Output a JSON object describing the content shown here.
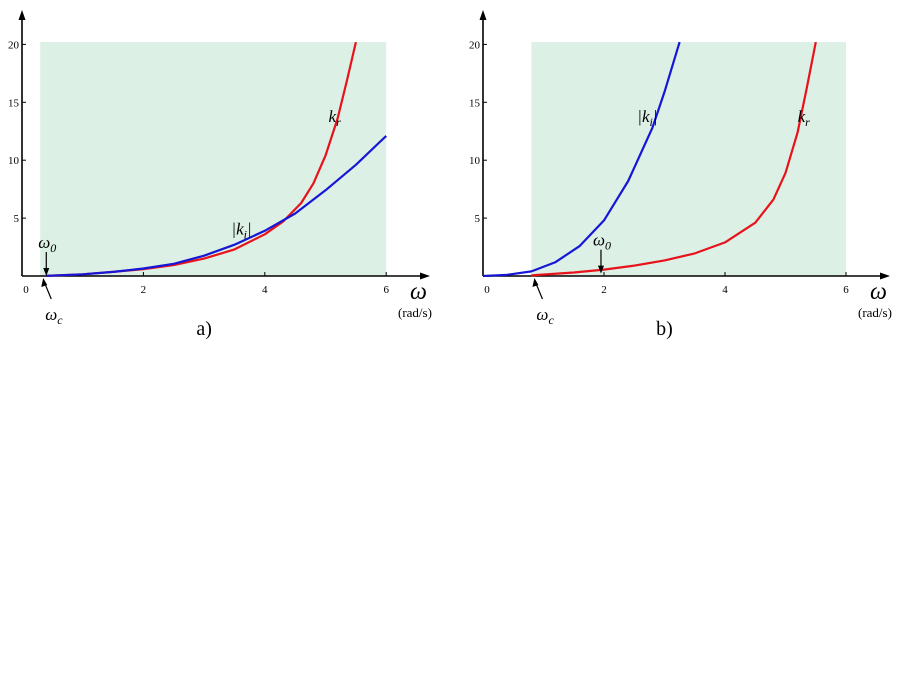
{
  "chart_data": [
    {
      "type": "line",
      "panel_label": "a)",
      "xlabel": "ω",
      "xunit": "(rad/s)",
      "ylabel": "",
      "xlim": [
        0,
        6.5
      ],
      "ylim": [
        0,
        22
      ],
      "xticks": [
        0,
        2,
        4,
        6
      ],
      "yticks": [
        5,
        10,
        15,
        20
      ],
      "shaded_region": {
        "x": [
          0.3,
          6.0
        ],
        "y": [
          0,
          20.2
        ],
        "color": "#dcf0e6"
      },
      "grid": false,
      "series": [
        {
          "name": "kr",
          "color": "#e8121a",
          "x": [
            0.4,
            1.0,
            1.5,
            2.0,
            2.5,
            3.0,
            3.5,
            4.0,
            4.3,
            4.6,
            4.8,
            5.0,
            5.2,
            5.35,
            5.5
          ],
          "y": [
            0.02,
            0.15,
            0.35,
            0.6,
            0.95,
            1.5,
            2.3,
            3.6,
            4.7,
            6.3,
            8.0,
            10.4,
            13.6,
            16.8,
            20.2
          ]
        },
        {
          "name": "|ki|",
          "color": "#1616d6",
          "x": [
            0.4,
            1.0,
            1.5,
            2.0,
            2.5,
            3.0,
            3.5,
            4.0,
            4.5,
            5.0,
            5.5,
            6.0
          ],
          "y": [
            0.02,
            0.15,
            0.35,
            0.65,
            1.05,
            1.75,
            2.7,
            3.9,
            5.4,
            7.4,
            9.6,
            12.1
          ]
        }
      ],
      "annotations": [
        {
          "text": "ω",
          "sub": "0",
          "x": 0.4,
          "arrow_to_y": 0.0,
          "position": "above"
        },
        {
          "text": "ω",
          "sub": "c",
          "x": 0.35,
          "arrow_to_y": 0.0,
          "position": "below"
        },
        {
          "text": "k",
          "sub": "r",
          "label_x": 5.05,
          "label_y": 13.3
        },
        {
          "text": "|k",
          "sub": "i",
          "close": "|",
          "label_x": 3.45,
          "label_y": 3.6
        }
      ]
    },
    {
      "type": "line",
      "panel_label": "b)",
      "xlabel": "ω",
      "xunit": "(rad/s)",
      "ylabel": "",
      "xlim": [
        0,
        6.5
      ],
      "ylim": [
        0,
        22
      ],
      "xticks": [
        0,
        2,
        4,
        6
      ],
      "yticks": [
        5,
        10,
        15,
        20
      ],
      "shaded_region": {
        "x": [
          0.8,
          6.0
        ],
        "y": [
          0,
          20.2
        ],
        "color": "#dcf0e6"
      },
      "grid": false,
      "series": [
        {
          "name": "kr",
          "color": "#e8121a",
          "x": [
            0.8,
            1.5,
            2.0,
            2.5,
            3.0,
            3.5,
            4.0,
            4.5,
            4.8,
            5.0,
            5.2,
            5.35,
            5.5
          ],
          "y": [
            0.05,
            0.3,
            0.55,
            0.9,
            1.35,
            1.95,
            2.9,
            4.6,
            6.6,
            8.9,
            12.4,
            16.2,
            20.2
          ]
        },
        {
          "name": "|ki|",
          "color": "#1616d6",
          "x": [
            0.0,
            0.4,
            0.8,
            1.2,
            1.6,
            2.0,
            2.4,
            2.8,
            3.0,
            3.25
          ],
          "y": [
            0.0,
            0.1,
            0.4,
            1.2,
            2.6,
            4.8,
            8.2,
            12.8,
            15.9,
            20.2
          ]
        }
      ],
      "annotations": [
        {
          "text": "ω",
          "sub": "0",
          "x": 1.95,
          "arrow_to_y": 0.2,
          "position": "above"
        },
        {
          "text": "ω",
          "sub": "c",
          "x": 0.85,
          "arrow_to_y": 0.0,
          "position": "below"
        },
        {
          "text": "k",
          "sub": "r",
          "label_x": 5.2,
          "label_y": 13.3
        },
        {
          "text": "|k",
          "sub": "i",
          "close": "|",
          "label_x": 2.55,
          "label_y": 13.3
        }
      ]
    }
  ]
}
